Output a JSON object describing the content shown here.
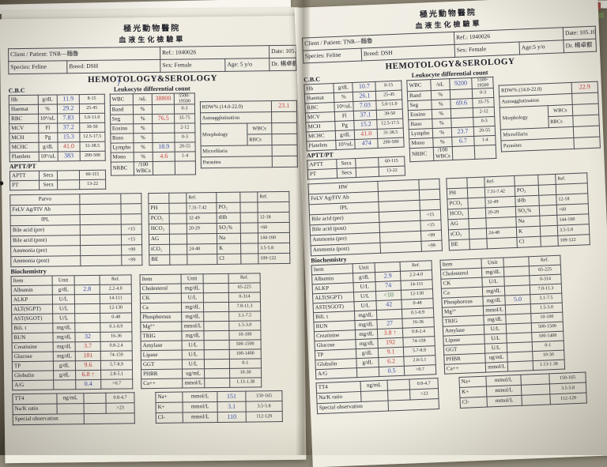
{
  "colors": {
    "paper": "#f0ede3",
    "desk": "#8f8a7a",
    "value_blue": "#3a4da8",
    "value_red": "#c1413c",
    "value_green": "#3f7d46"
  },
  "pen": {
    "arrow": "↑",
    "dot": "●"
  },
  "pages": [
    {
      "header": {
        "hospital": "極光動物醫院",
        "form": "血液生化檢驗單"
      },
      "info": {
        "client": "Client / Patient: TNR—麵魯",
        "ref": "Ref.: 1040026",
        "date": "Date: 105.10.25",
        "species": "Species: Feline",
        "breed": "Breed: DSH",
        "sex": "Sex: Female",
        "age": "Age: 5 y/o",
        "doctor": "Dr. 楊卓叡"
      },
      "section_title": "HEMOTOLOGY&SEROLOGY",
      "labels": {
        "cbc": "C.B.C",
        "aptt": "APTT/PT",
        "leuko": "Leukocyte differential count",
        "bio": "Biochemistry"
      },
      "cbc": [
        [
          "Hb",
          "g/dL",
          {
            "t": "11.9",
            "c": "blue"
          },
          "8-15"
        ],
        [
          "Haemat",
          "%",
          {
            "t": "29.2",
            "c": "blue"
          },
          "25-45"
        ],
        [
          "RBC",
          "10⁶/uL",
          {
            "t": "7.83",
            "c": "blue"
          },
          "5.0-11.0"
        ],
        [
          "MCV",
          "Fl",
          {
            "t": "37.2",
            "c": "blue"
          },
          "39-50"
        ],
        [
          "MCH",
          "Pg",
          {
            "t": "15.3",
            "c": "blue"
          },
          "12.5-17.5"
        ],
        [
          "MCHC",
          "g/dL",
          {
            "t": "41.0",
            "c": "red"
          },
          "31-38.5"
        ],
        [
          "Platelets",
          "10⁵/uL",
          {
            "t": "383",
            "c": "blue"
          },
          "200-500"
        ]
      ],
      "aptt": [
        [
          "APTT",
          "Secs",
          "",
          "60-115"
        ],
        [
          "PT",
          "Secs",
          "",
          "13-22"
        ]
      ],
      "leuko": [
        [
          "WBC",
          "/uL",
          {
            "t": "38800",
            "c": "red"
          },
          "5500-19500"
        ],
        [
          "Band",
          "%",
          "",
          "0-3"
        ],
        [
          "Seg",
          "%",
          {
            "t": "76.5",
            "c": "red"
          },
          "35-75"
        ],
        [
          "Eosino",
          "%",
          "",
          "2-12"
        ],
        [
          "Baso",
          "%",
          "",
          "0-3"
        ],
        [
          "Lympho",
          "%",
          {
            "t": "18.9",
            "c": "blue"
          },
          "20-55"
        ],
        [
          "Mono",
          "%",
          {
            "t": "4.6",
            "c": "red"
          },
          "1-4"
        ],
        [
          "NRBC",
          "/100 WBCs",
          "",
          ""
        ]
      ],
      "rdw": [
        [
          {
            "t": "RDW% (14.0-22.0)",
            "s": 2
          },
          {
            "t": "23.1",
            "c": "red"
          }
        ],
        [
          {
            "t": "Autoagglutination",
            "s": 2
          },
          ""
        ],
        [
          {
            "t": "Morphology",
            "r": 2
          },
          "WBCs",
          ""
        ],
        [
          "RBCs",
          ""
        ],
        [
          {
            "t": "Microfilaria",
            "s": 2
          },
          ""
        ],
        [
          {
            "t": "Parasites",
            "s": 2
          },
          ""
        ]
      ],
      "serology": [
        [
          {
            "t": "Parvo",
            "c": "ctr"
          },
          "",
          ""
        ],
        [
          "FeLV Ag/FIV Ab",
          "",
          ""
        ],
        [
          {
            "t": "fPL",
            "c": "ctr"
          },
          "",
          ""
        ],
        [
          "Bile acid (pre)",
          "",
          "<15"
        ],
        [
          "Bile acid (post)",
          "",
          "<15"
        ],
        [
          "Ammonia (pre)",
          "",
          "<99"
        ],
        [
          "Ammonia (post)",
          "",
          "<99"
        ]
      ],
      "gas": [
        [
          "",
          "",
          "Ref.",
          "",
          "",
          "Ref."
        ],
        [
          "PH",
          "",
          "7.31-7.42",
          "PO₂",
          "",
          ""
        ],
        [
          "PCO₂",
          "",
          "32-49",
          "tHb",
          "",
          "12-18"
        ],
        [
          "HCO₃",
          "",
          "20-29",
          "SO₂%",
          "",
          "<60"
        ],
        [
          "AG",
          "",
          "",
          "Na",
          "",
          "144-160"
        ],
        [
          "tCO₂",
          "",
          "24-48",
          "K",
          "",
          "3.5-5.8"
        ],
        [
          "BE",
          "",
          "",
          "Cl",
          "",
          "109-122"
        ]
      ],
      "bio1": [
        [
          "Item",
          "Unit",
          "",
          "Ref."
        ],
        [
          "Albumin",
          "g/dL",
          {
            "t": "2.8",
            "c": "blue"
          },
          "2.2-4.0"
        ],
        [
          "ALKP",
          "U/L",
          "",
          "14-111"
        ],
        [
          "ALT(SGPT)",
          "U/L",
          "",
          "12-130"
        ],
        [
          "AST(SGOT)",
          "U/L",
          "",
          "0-48"
        ],
        [
          "Bili. t",
          "mg/dL",
          "",
          "0.1-0.9"
        ],
        [
          "BUN",
          "mg/dL",
          {
            "t": "32",
            "c": "blue"
          },
          "16-36"
        ],
        [
          "Creatinine",
          "mg/dL",
          {
            "t": "3.7",
            "c": "red"
          },
          "0.8-2.4"
        ],
        [
          "Glucose",
          "mg/dL",
          {
            "t": "181",
            "c": "red"
          },
          "74-159"
        ],
        [
          "TP",
          "g/dL",
          {
            "t": "9.6",
            "c": "red"
          },
          "5.7-8.9"
        ],
        [
          "Globulin",
          "g/dL",
          {
            "t": "6.8 ↑",
            "c": "red"
          },
          "2.8-5.1"
        ],
        [
          "A/G",
          "",
          {
            "t": "0.4",
            "c": "blue"
          },
          ">0.7"
        ]
      ],
      "bio2": [
        [
          "Item",
          "Unit",
          "",
          "Ref."
        ],
        [
          "Cholesterol",
          "mg/dL",
          "",
          "65-225"
        ],
        [
          "CK",
          "U/L",
          "",
          "0-314"
        ],
        [
          "Ca",
          "mg/dL",
          "",
          "7.8-11.3"
        ],
        [
          "Phosphorous",
          "mg/dL",
          "",
          "3.1-7.5"
        ],
        [
          "Mg²⁺",
          "mmol/L",
          "",
          "1.5-3.0"
        ],
        [
          "TRIG",
          "mg/dL",
          "",
          "10-100"
        ],
        [
          "Amylase",
          "U/L",
          "",
          "500-1500"
        ],
        [
          "Lipase",
          "U/L",
          "",
          "100-1400"
        ],
        [
          "GGT",
          "U/L",
          "",
          "0-1"
        ],
        [
          "PHBR",
          "ug/mL",
          "",
          "10-30"
        ],
        [
          "Ca++",
          "mmol/L",
          "",
          "1.13-1.38"
        ]
      ],
      "tt4": [
        [
          "TT4",
          "ng/mL",
          "",
          "0.8-4.7"
        ],
        [
          "Na/K ratio",
          "",
          "",
          ">23"
        ],
        [
          {
            "t": "Special observation",
            "s": 2
          },
          {
            "t": "",
            "s": 2
          }
        ]
      ],
      "nak": [
        [
          "Na+",
          "mmol/L",
          {
            "t": "151",
            "c": "blue"
          },
          "150-165"
        ],
        [
          "K+",
          "mmol/L",
          {
            "t": "3.1",
            "c": "blue"
          },
          "3.5-5.8"
        ],
        [
          "Cl-",
          "mmol/L",
          {
            "t": "110",
            "c": "blue"
          },
          "112-129"
        ]
      ]
    },
    {
      "header": {
        "hospital": "極光動物醫院",
        "form": "血液生化檢驗單"
      },
      "info": {
        "client": "Client / Patient: TNR—麵魯",
        "ref": "Ref.: 1040026",
        "date": "Date: 105.10.19",
        "species": "Species: Feline",
        "breed": "Breed: DSH",
        "sex": "Sex: Female",
        "age": "Age:5 y/o",
        "doctor": "Dr. 楊卓叡"
      },
      "section_title": "HEMOTOLOGY&SEROLOGY",
      "labels": {
        "cbc": "C.B.C",
        "aptt": "APTT/PT",
        "leuko": "Leukocyte differential count",
        "bio": "Biochemistry"
      },
      "cbc": [
        [
          "Hb",
          "g/dL",
          {
            "t": "10.7",
            "c": "blue"
          },
          "8-15"
        ],
        [
          "Haemat",
          "%",
          {
            "t": "26.1",
            "c": "blue"
          },
          "25-45"
        ],
        [
          "RBC",
          "10⁶/uL",
          {
            "t": "7.03",
            "c": "blue"
          },
          "5.0-11.0"
        ],
        [
          "MCV",
          "Fl",
          {
            "t": "37.1",
            "c": "blue"
          },
          "39-50"
        ],
        [
          "MCH",
          "Pg",
          {
            "t": "15.2",
            "c": "blue"
          },
          "12.5-17.5"
        ],
        [
          "MCHC",
          "g/dL",
          {
            "t": "41.0",
            "c": "red"
          },
          "31-38.5"
        ],
        [
          "Platelets",
          "10⁵/uL",
          {
            "t": "474",
            "c": "blue"
          },
          "200-500"
        ]
      ],
      "aptt": [
        [
          "APTT",
          "Secs",
          "",
          "60-115"
        ],
        [
          "PT",
          "Secs",
          "",
          "13-22"
        ]
      ],
      "leuko": [
        [
          "WBC",
          "/uL",
          {
            "t": "9200",
            "c": "blue"
          },
          "5500-19500"
        ],
        [
          "Band",
          "%",
          "",
          "0-3"
        ],
        [
          "Seg",
          "%",
          {
            "t": "69.6",
            "c": "blue"
          },
          "35-75"
        ],
        [
          "Eosino",
          "%",
          "",
          "2-12"
        ],
        [
          "Baso",
          "%",
          "",
          "0-3"
        ],
        [
          "Lympho",
          "%",
          {
            "t": "23.7",
            "c": "blue"
          },
          "20-55"
        ],
        [
          "Mono",
          "%",
          {
            "t": "6.7",
            "c": "blue"
          },
          "1-4"
        ],
        [
          "NRBC",
          "/100 WBCs",
          "",
          ""
        ]
      ],
      "rdw": [
        [
          {
            "t": "RDW% (14.0-22.0)",
            "s": 2
          },
          {
            "t": "22.9",
            "c": "red"
          }
        ],
        [
          {
            "t": "Autoagglutination",
            "s": 2
          },
          ""
        ],
        [
          {
            "t": "Morphology",
            "r": 2
          },
          "WBCs",
          ""
        ],
        [
          "RBCs",
          ""
        ],
        [
          {
            "t": "Microfilaria",
            "s": 2
          },
          ""
        ],
        [
          {
            "t": "Parasites",
            "s": 2
          },
          ""
        ]
      ],
      "serology": [
        [
          {
            "t": "HW",
            "c": "ctr"
          },
          "",
          ""
        ],
        [
          "FeLV Ag/FIV Ab",
          "",
          ""
        ],
        [
          {
            "t": "fPL",
            "c": "ctr"
          },
          "",
          ""
        ],
        [
          "Bile acid (pre)",
          "",
          "<15"
        ],
        [
          "Bile acid (post)",
          "",
          "<15"
        ],
        [
          "Ammonia (pre)",
          "",
          "<99"
        ],
        [
          "Ammonia (post)",
          "",
          "<99"
        ]
      ],
      "gas": [
        [
          "",
          "",
          "Ref.",
          "",
          "",
          "Ref."
        ],
        [
          "PH",
          "",
          "7.31-7.42",
          "PO₂",
          "",
          ""
        ],
        [
          "PCO₂",
          "",
          "32-49",
          "tHb",
          "",
          "12-18"
        ],
        [
          "HCO₃",
          "",
          "20-29",
          "SO₂%",
          "",
          "<60"
        ],
        [
          "AG",
          "",
          "",
          "Na",
          "",
          "144-160"
        ],
        [
          "tCO₂",
          "",
          "24-48",
          "K",
          "",
          "3.5-5.8"
        ],
        [
          "BE",
          "",
          "",
          "Cl",
          "",
          "109-122"
        ]
      ],
      "bio1": [
        [
          "Item",
          "Unit",
          "",
          "Ref."
        ],
        [
          "Albumin",
          "g/dL",
          {
            "t": "2.9",
            "c": "blue"
          },
          "2.2-4.0"
        ],
        [
          "ALKP",
          "U/L",
          {
            "t": "74",
            "c": "blue"
          },
          "14-111"
        ],
        [
          "ALT(SGPT)",
          "U/L",
          {
            "t": "<10",
            "c": "green"
          },
          "12-130"
        ],
        [
          "AST(SGOT)",
          "U/L",
          {
            "t": "42",
            "c": "blue"
          },
          "0-48"
        ],
        [
          "Bili. t",
          "mg/dL",
          "",
          "0.1-0.9"
        ],
        [
          "BUN",
          "mg/dL",
          {
            "t": "27",
            "c": "blue"
          },
          "16-36"
        ],
        [
          "Creatinine",
          "mg/dL",
          {
            "t": "3.8 ↑",
            "c": "red"
          },
          "0.8-2.4"
        ],
        [
          "Glucose",
          "mg/dL",
          {
            "t": "192",
            "c": "red"
          },
          "74-159"
        ],
        [
          "TP",
          "g/dL",
          {
            "t": "9.1",
            "c": "red"
          },
          "5.7-8.9"
        ],
        [
          "Globulin",
          "g/dL",
          {
            "t": "6.2",
            "c": "red"
          },
          "2.8-5.1"
        ],
        [
          "A/G",
          "",
          {
            "t": "0.5",
            "c": "blue"
          },
          ">0.7"
        ]
      ],
      "bio2": [
        [
          "Item",
          "Unit",
          "",
          "Ref."
        ],
        [
          "Cholesterol",
          "mg/dL",
          "",
          "65-225"
        ],
        [
          "CK",
          "U/L",
          "",
          "0-314"
        ],
        [
          "Ca",
          "mg/dL",
          "",
          "7.8-11.3"
        ],
        [
          "Phosphorous",
          "mg/dL",
          {
            "t": "5.0",
            "c": "blue"
          },
          "3.1-7.5"
        ],
        [
          "Mg²⁺",
          "mmol/L",
          "",
          "1.5-3.0"
        ],
        [
          "TRIG",
          "mg/dL",
          "",
          "10-100"
        ],
        [
          "Amylase",
          "U/L",
          "",
          "500-1500"
        ],
        [
          "Lipase",
          "U/L",
          "",
          "100-1400"
        ],
        [
          "GGT",
          "U/L",
          "",
          "0-1"
        ],
        [
          "PHBR",
          "ug/mL",
          "",
          "10-30"
        ],
        [
          "Ca++",
          "mmol/L",
          "",
          "1.13-1.38"
        ]
      ],
      "tt4": [
        [
          "TT4",
          "ng/mL",
          "",
          "0.8-4.7"
        ],
        [
          "Na/K ratio",
          "",
          "",
          ">23"
        ],
        [
          {
            "t": "Special observation",
            "s": 2
          },
          {
            "t": "",
            "s": 2
          }
        ]
      ],
      "nak": [
        [
          "Na+",
          "mmol/L",
          "",
          "150-165"
        ],
        [
          "K+",
          "mmol/L",
          "",
          "3.5-5.8"
        ],
        [
          "Cl-",
          "mmol/L",
          "",
          "112-129"
        ]
      ]
    }
  ]
}
